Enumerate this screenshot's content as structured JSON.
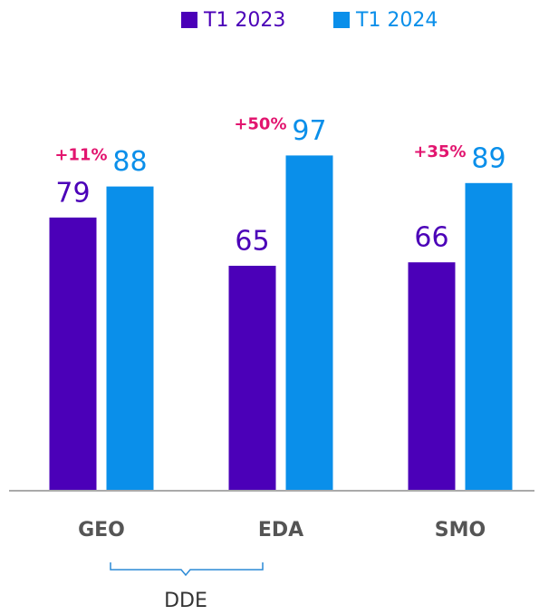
{
  "chart_data": {
    "type": "bar",
    "categories": [
      "GEO",
      "EDA",
      "SMO"
    ],
    "series": [
      {
        "name": "T1 2023",
        "color": "#4b00b8",
        "values": [
          79,
          65,
          66
        ]
      },
      {
        "name": "T1 2024",
        "color": "#0a8fea",
        "values": [
          88,
          97,
          89
        ]
      }
    ],
    "annotations": [
      "+11%",
      "+50%",
      "+35%"
    ],
    "annotation_color": "#e2156f",
    "bracket_label": "DDE",
    "ylim": [
      0,
      100
    ]
  }
}
